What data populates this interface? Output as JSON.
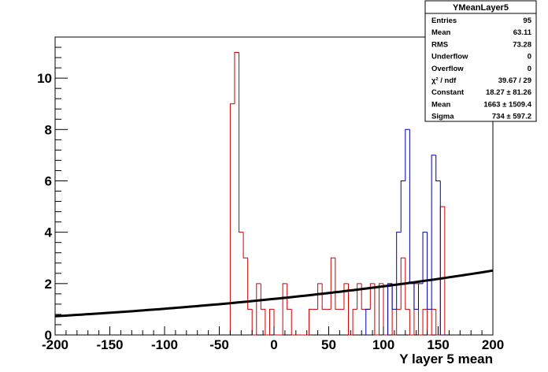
{
  "chart_data": {
    "type": "bar",
    "title": "",
    "xlabel": "Y layer 5 mean",
    "ylabel": "",
    "xlim": [
      -200,
      200
    ],
    "ylim": [
      0,
      11.6
    ],
    "bin_width": 4,
    "x_ticks": [
      -200,
      -150,
      -100,
      -50,
      0,
      50,
      100,
      150,
      200
    ],
    "y_ticks": [
      0,
      2,
      4,
      6,
      8,
      10
    ],
    "grid": false,
    "colors": {
      "red": "#cc0000",
      "blue": "#0000aa",
      "fit": "#000000"
    },
    "series": [
      {
        "color": "red",
        "bins": [
          [
            -40,
            9
          ],
          [
            -36,
            11
          ],
          [
            -32,
            4
          ],
          [
            -28,
            3
          ],
          [
            -24,
            1
          ],
          [
            -20,
            0
          ],
          [
            -16,
            2
          ],
          [
            -12,
            1
          ],
          [
            -8,
            0
          ],
          [
            -4,
            1
          ],
          [
            0,
            0
          ],
          [
            4,
            0
          ],
          [
            8,
            2
          ],
          [
            12,
            1
          ],
          [
            16,
            0
          ],
          [
            20,
            0
          ],
          [
            24,
            0
          ],
          [
            28,
            0
          ],
          [
            32,
            1
          ],
          [
            36,
            1
          ],
          [
            40,
            2
          ],
          [
            44,
            1
          ],
          [
            48,
            1
          ],
          [
            52,
            3
          ],
          [
            56,
            1
          ],
          [
            60,
            1
          ],
          [
            64,
            2
          ],
          [
            68,
            0
          ],
          [
            72,
            1
          ],
          [
            76,
            2
          ],
          [
            80,
            1
          ],
          [
            84,
            1
          ],
          [
            88,
            2
          ],
          [
            92,
            0
          ],
          [
            96,
            2
          ],
          [
            100,
            0
          ],
          [
            104,
            2
          ],
          [
            108,
            0
          ],
          [
            112,
            1
          ],
          [
            116,
            3
          ],
          [
            120,
            1
          ],
          [
            124,
            0
          ],
          [
            128,
            2
          ],
          [
            132,
            0
          ],
          [
            136,
            1
          ],
          [
            140,
            0
          ],
          [
            144,
            1
          ],
          [
            148,
            0
          ],
          [
            152,
            5
          ]
        ]
      },
      {
        "color": "blue",
        "bins": [
          [
            84,
            1
          ],
          [
            104,
            2
          ],
          [
            108,
            1
          ],
          [
            112,
            4
          ],
          [
            116,
            6
          ],
          [
            120,
            8
          ],
          [
            124,
            2
          ],
          [
            128,
            1
          ],
          [
            132,
            2
          ],
          [
            136,
            4
          ],
          [
            140,
            1
          ],
          [
            144,
            7
          ],
          [
            148,
            6
          ],
          [
            152,
            0
          ]
        ]
      }
    ],
    "fit": {
      "function": "gaus",
      "constant": 18.27,
      "mean": 1663,
      "sigma": 734
    },
    "stats": {
      "name": "YMeanLayer5",
      "rows": [
        {
          "label": "Entries",
          "value": "95"
        },
        {
          "label": "Mean",
          "value": "63.11"
        },
        {
          "label": "RMS",
          "value": "73.28"
        },
        {
          "label": "Underflow",
          "value": "0"
        },
        {
          "label": "Overflow",
          "value": "0"
        },
        {
          "label": "χ² / ndf",
          "value": "39.67 / 29"
        },
        {
          "label": "Constant",
          "value": "18.27 ± 81.26"
        },
        {
          "label": "Mean",
          "value": "1663 ± 1509.4"
        },
        {
          "label": "Sigma",
          "value": "734 ± 597.2"
        }
      ]
    }
  }
}
